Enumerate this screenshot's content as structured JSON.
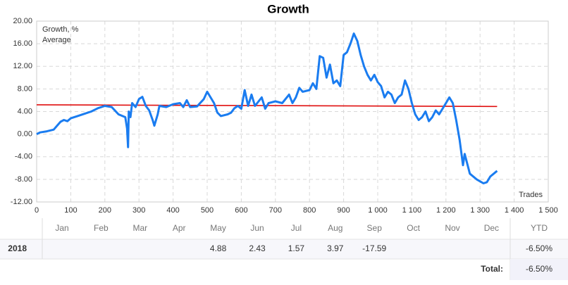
{
  "chart_data": {
    "type": "line",
    "title": "Growth",
    "x_label": "Trades",
    "xlim": [
      0,
      1500
    ],
    "xticks": [
      0,
      100,
      200,
      300,
      400,
      500,
      600,
      700,
      800,
      900,
      {
        "value": 1000,
        "label": "1 000"
      },
      {
        "value": 1100,
        "label": "1 100"
      },
      {
        "value": 1200,
        "label": "1 200"
      },
      {
        "value": 1300,
        "label": "1 300"
      },
      {
        "value": 1400,
        "label": "1 400"
      },
      {
        "value": 1500,
        "label": "1 500"
      }
    ],
    "ylim": [
      -12,
      20
    ],
    "yticks": [
      {
        "value": -12,
        "label": "-12.00"
      },
      {
        "value": -8,
        "label": "-8.00"
      },
      {
        "value": -4,
        "label": "-4.00"
      },
      {
        "value": 0,
        "label": "0.00"
      },
      {
        "value": 4,
        "label": "4.00"
      },
      {
        "value": 8,
        "label": "8.00"
      },
      {
        "value": 12,
        "label": "12.00"
      },
      {
        "value": 16,
        "label": "16.00"
      },
      {
        "value": 20,
        "label": "20.00"
      }
    ],
    "grid": true,
    "legend": "top-left",
    "series": [
      {
        "name": "Growth, %",
        "color": "#1a7cf0",
        "x": [
          0,
          10,
          30,
          50,
          60,
          70,
          80,
          90,
          100,
          120,
          140,
          160,
          180,
          200,
          220,
          240,
          260,
          265,
          268,
          270,
          275,
          280,
          290,
          300,
          310,
          320,
          330,
          340,
          345,
          355,
          360,
          380,
          400,
          420,
          430,
          440,
          450,
          470,
          490,
          500,
          510,
          520,
          530,
          540,
          560,
          570,
          580,
          590,
          600,
          610,
          620,
          630,
          640,
          660,
          670,
          680,
          700,
          720,
          740,
          750,
          760,
          770,
          780,
          800,
          810,
          820,
          830,
          840,
          850,
          860,
          870,
          880,
          890,
          900,
          910,
          920,
          930,
          940,
          950,
          960,
          970,
          980,
          990,
          1000,
          1010,
          1020,
          1030,
          1040,
          1050,
          1060,
          1070,
          1080,
          1090,
          1100,
          1110,
          1120,
          1130,
          1140,
          1150,
          1160,
          1170,
          1180,
          1190,
          1200,
          1210,
          1220,
          1230,
          1240,
          1250,
          1255,
          1270,
          1290,
          1310,
          1320,
          1330,
          1340,
          1350
        ],
        "values": [
          0,
          0.3,
          0.5,
          0.8,
          1.5,
          2.2,
          2.5,
          2.3,
          2.8,
          3.2,
          3.6,
          4.0,
          4.6,
          5.0,
          4.8,
          3.5,
          3.0,
          1.0,
          -2.3,
          4.0,
          3.0,
          5.5,
          4.8,
          6.2,
          6.6,
          5.0,
          4.2,
          2.5,
          1.5,
          3.5,
          5.0,
          4.8,
          5.3,
          5.5,
          4.8,
          6.0,
          4.8,
          4.9,
          6.2,
          7.5,
          6.5,
          5.5,
          3.8,
          3.2,
          3.5,
          3.8,
          4.6,
          5.0,
          4.5,
          7.8,
          5.0,
          7.0,
          5.0,
          6.5,
          4.5,
          5.5,
          5.8,
          5.5,
          7.0,
          5.5,
          6.5,
          8.2,
          7.5,
          7.8,
          9.0,
          8.0,
          13.8,
          13.5,
          10.0,
          12.3,
          9.0,
          9.5,
          8.5,
          14.0,
          14.5,
          16.0,
          17.8,
          16.5,
          14.0,
          12.0,
          10.5,
          9.5,
          10.5,
          9.2,
          8.5,
          6.5,
          7.5,
          7.0,
          5.5,
          6.5,
          7.0,
          9.5,
          8.0,
          5.5,
          3.5,
          2.5,
          3.0,
          4.0,
          2.3,
          3.0,
          4.2,
          3.5,
          4.5,
          5.5,
          6.5,
          5.5,
          2.5,
          -1.0,
          -5.5,
          -3.5,
          -7.0,
          -8.0,
          -8.7,
          -8.5,
          -7.5,
          -7.0,
          -6.5
        ]
      },
      {
        "name": "Average",
        "color": "#e01010",
        "x": [
          0,
          1350
        ],
        "values": [
          5.2,
          4.9
        ]
      }
    ]
  },
  "table": {
    "columns": [
      "Jan",
      "Feb",
      "Mar",
      "Apr",
      "May",
      "Jun",
      "Jul",
      "Aug",
      "Sep",
      "Oct",
      "Nov",
      "Dec"
    ],
    "ytd_header": "YTD",
    "rows": [
      {
        "label": "2018",
        "cells": [
          null,
          null,
          null,
          null,
          4.88,
          2.43,
          1.57,
          3.97,
          -17.59,
          null,
          null,
          null
        ],
        "ytd": "-6.50%"
      }
    ],
    "total_label": "Total:",
    "total": "-6.50%"
  }
}
